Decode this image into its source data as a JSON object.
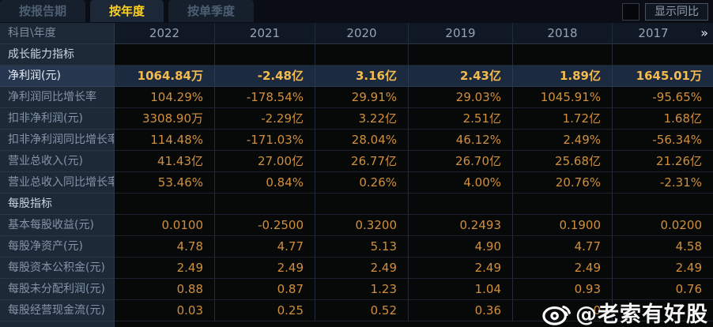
{
  "tabs": [
    {
      "label": "按报告期",
      "active": false
    },
    {
      "label": "按年度",
      "active": true
    },
    {
      "label": "按单季度",
      "active": false
    }
  ],
  "controls": {
    "show_yoy_label": "显示同比",
    "show_yoy_checked": false
  },
  "table": {
    "corner_label": "科目\\年度",
    "years": [
      "2022",
      "2021",
      "2020",
      "2019",
      "2018",
      "2017"
    ],
    "more_icon": "»",
    "rows": [
      {
        "type": "section",
        "label": "成长能力指标",
        "values": [
          "",
          "",
          "",
          "",
          "",
          ""
        ]
      },
      {
        "type": "data",
        "highlight": true,
        "label": "净利润(元)",
        "values": [
          "1064.84万",
          "-2.48亿",
          "3.16亿",
          "2.43亿",
          "1.89亿",
          "1645.01万"
        ]
      },
      {
        "type": "data",
        "highlight": false,
        "label": "净利润同比增长率",
        "values": [
          "104.29%",
          "-178.54%",
          "29.91%",
          "29.03%",
          "1045.91%",
          "-95.65%"
        ]
      },
      {
        "type": "data",
        "highlight": false,
        "label": "扣非净利润(元)",
        "values": [
          "3308.90万",
          "-2.29亿",
          "3.22亿",
          "2.51亿",
          "1.72亿",
          "1.68亿"
        ]
      },
      {
        "type": "data",
        "highlight": false,
        "label": "扣非净利润同比增长率",
        "values": [
          "114.48%",
          "-171.03%",
          "28.04%",
          "46.12%",
          "2.49%",
          "-56.34%"
        ]
      },
      {
        "type": "data",
        "highlight": false,
        "label": "营业总收入(元)",
        "values": [
          "41.43亿",
          "27.00亿",
          "26.77亿",
          "26.70亿",
          "25.68亿",
          "21.26亿"
        ]
      },
      {
        "type": "data",
        "highlight": false,
        "label": "营业总收入同比增长率",
        "values": [
          "53.46%",
          "0.84%",
          "0.26%",
          "4.00%",
          "20.76%",
          "-2.31%"
        ]
      },
      {
        "type": "section",
        "label": "每股指标",
        "values": [
          "",
          "",
          "",
          "",
          "",
          ""
        ]
      },
      {
        "type": "data",
        "highlight": false,
        "label": "基本每股收益(元)",
        "values": [
          "0.0100",
          "-0.2500",
          "0.3200",
          "0.2493",
          "0.1900",
          "0.0200"
        ]
      },
      {
        "type": "data",
        "highlight": false,
        "label": "每股净资产(元)",
        "values": [
          "4.78",
          "4.77",
          "5.13",
          "4.90",
          "4.77",
          "4.58"
        ]
      },
      {
        "type": "data",
        "highlight": false,
        "label": "每股资本公积金(元)",
        "values": [
          "2.49",
          "2.49",
          "2.49",
          "2.49",
          "2.49",
          "2.49"
        ]
      },
      {
        "type": "data",
        "highlight": false,
        "label": "每股未分配利润(元)",
        "values": [
          "0.88",
          "0.87",
          "1.23",
          "1.04",
          "0.93",
          "0.76"
        ]
      },
      {
        "type": "data",
        "highlight": false,
        "label": "每股经营现金流(元)",
        "values": [
          "0.03",
          "0.25",
          "0.52",
          "0.36",
          "0",
          ""
        ]
      }
    ]
  },
  "watermark": {
    "icon": "weibo-icon",
    "text": "@老索有好股"
  },
  "colors": {
    "tab_active_text": "#ffd21e",
    "value_gold": "#d08f3d",
    "highlight_value_gold": "#f5bb4e",
    "highlight_row_bg": "#1c2a3f",
    "label_column_bg": "#1d2937",
    "cell_bg": "#070909",
    "watermark_text": "#f5f5f5"
  }
}
